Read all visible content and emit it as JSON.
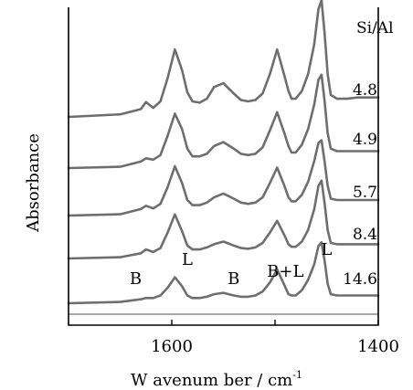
{
  "chart_data": {
    "type": "line",
    "title": "",
    "xlabel": "W avenum ber / cm",
    "xlabel_sup": "-1",
    "ylabel": "Absorbance",
    "x_reversed": true,
    "xlim": [
      1700,
      1400
    ],
    "x_ticks": [
      {
        "value": 1600,
        "label": "1600"
      },
      {
        "value": 1500,
        "label": ""
      },
      {
        "value": 1400,
        "label": "1400"
      }
    ],
    "legend_title": "Si/Al",
    "peak_labels": [
      {
        "text": "L",
        "x": 1585
      },
      {
        "text": "B",
        "x": 1635
      },
      {
        "text": "B",
        "x": 1540
      },
      {
        "text": "B+L",
        "x": 1490
      },
      {
        "text": "L",
        "x": 1450
      }
    ],
    "x": [
      1700,
      1650,
      1630,
      1625,
      1618,
      1611,
      1604,
      1597,
      1590,
      1585,
      1580,
      1573,
      1566,
      1559,
      1550,
      1540,
      1533,
      1526,
      1519,
      1512,
      1505,
      1498,
      1491,
      1487,
      1484,
      1480,
      1474,
      1468,
      1462,
      1458,
      1455,
      1452,
      1449,
      1446,
      1440,
      1430,
      1420,
      1410,
      1400
    ],
    "series": [
      {
        "name": "4.8",
        "values": [
          0.0,
          0.02,
          0.06,
          0.115,
          0.07,
          0.12,
          0.3,
          0.52,
          0.36,
          0.19,
          0.12,
          0.11,
          0.14,
          0.23,
          0.26,
          0.18,
          0.13,
          0.12,
          0.13,
          0.18,
          0.33,
          0.52,
          0.32,
          0.2,
          0.14,
          0.14,
          0.2,
          0.33,
          0.56,
          0.83,
          0.9,
          0.65,
          0.33,
          0.17,
          0.14,
          0.14,
          0.15,
          0.15,
          0.15
        ]
      },
      {
        "name": "4.9",
        "values": [
          0.0,
          0.01,
          0.05,
          0.075,
          0.065,
          0.1,
          0.25,
          0.42,
          0.3,
          0.15,
          0.09,
          0.09,
          0.11,
          0.17,
          0.2,
          0.15,
          0.11,
          0.1,
          0.11,
          0.16,
          0.29,
          0.43,
          0.27,
          0.17,
          0.12,
          0.12,
          0.18,
          0.3,
          0.49,
          0.68,
          0.72,
          0.52,
          0.27,
          0.15,
          0.13,
          0.13,
          0.13,
          0.13,
          0.13
        ]
      },
      {
        "name": "5.7",
        "values": [
          0.0,
          0.01,
          0.05,
          0.075,
          0.055,
          0.09,
          0.22,
          0.38,
          0.25,
          0.12,
          0.08,
          0.08,
          0.1,
          0.14,
          0.17,
          0.13,
          0.1,
          0.09,
          0.1,
          0.14,
          0.25,
          0.37,
          0.23,
          0.14,
          0.11,
          0.11,
          0.16,
          0.26,
          0.42,
          0.56,
          0.58,
          0.42,
          0.23,
          0.13,
          0.12,
          0.12,
          0.12,
          0.12,
          0.12
        ]
      },
      {
        "name": "8.4",
        "values": [
          0.0,
          0.01,
          0.04,
          0.07,
          0.05,
          0.08,
          0.2,
          0.34,
          0.21,
          0.1,
          0.07,
          0.07,
          0.085,
          0.11,
          0.13,
          0.1,
          0.08,
          0.075,
          0.085,
          0.12,
          0.2,
          0.29,
          0.18,
          0.11,
          0.09,
          0.09,
          0.13,
          0.22,
          0.38,
          0.56,
          0.6,
          0.43,
          0.22,
          0.12,
          0.11,
          0.11,
          0.11,
          0.11,
          0.11
        ]
      },
      {
        "name": "14.6",
        "values": [
          0.0,
          0.01,
          0.03,
          0.04,
          0.04,
          0.06,
          0.12,
          0.2,
          0.13,
          0.06,
          0.04,
          0.04,
          0.05,
          0.07,
          0.08,
          0.06,
          0.05,
          0.05,
          0.06,
          0.09,
          0.16,
          0.26,
          0.14,
          0.07,
          0.06,
          0.06,
          0.1,
          0.18,
          0.3,
          0.44,
          0.47,
          0.33,
          0.15,
          0.07,
          0.06,
          0.06,
          0.06,
          0.06,
          0.06
        ]
      }
    ],
    "grid": false,
    "legend_placement": "right, each label beside its trace"
  }
}
